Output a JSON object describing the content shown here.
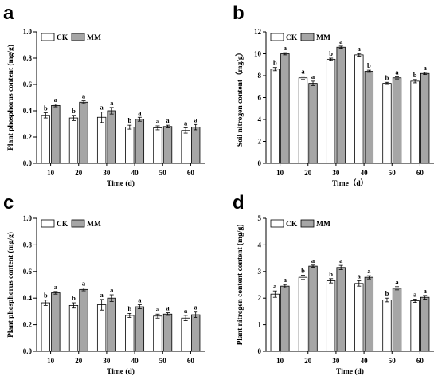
{
  "figure": {
    "panels": [
      "a",
      "b",
      "c",
      "d"
    ]
  },
  "colors": {
    "ck_fill": "#ffffff",
    "mm_fill": "#a6a6a6",
    "stroke": "#000000",
    "background": "#ffffff"
  },
  "chart_data": [
    {
      "panel": "a",
      "type": "bar",
      "categories": [
        "10",
        "20",
        "30",
        "40",
        "50",
        "60"
      ],
      "series": [
        {
          "name": "CK",
          "values": [
            0.365,
            0.345,
            0.35,
            0.275,
            0.27,
            0.25
          ],
          "errors": [
            0.02,
            0.02,
            0.04,
            0.015,
            0.015,
            0.02
          ],
          "labels": [
            "b",
            "b",
            "a",
            "b",
            "a",
            "a"
          ]
        },
        {
          "name": "MM",
          "values": [
            0.44,
            0.465,
            0.4,
            0.335,
            0.28,
            0.275
          ],
          "errors": [
            0.01,
            0.01,
            0.025,
            0.015,
            0.01,
            0.02
          ],
          "labels": [
            "a",
            "a",
            "a",
            "a",
            "a",
            "a"
          ]
        }
      ],
      "xlabel": "Time (d)",
      "ylabel": "Plant phosphorus content (mg/g)",
      "ylim": [
        0,
        1.0
      ],
      "yticks": [
        "0.0",
        "0.2",
        "0.4",
        "0.6",
        "0.8",
        "1.0"
      ],
      "legend": "top-left"
    },
    {
      "panel": "b",
      "type": "bar",
      "categories": [
        "10",
        "20",
        "30",
        "40",
        "50",
        "60"
      ],
      "series": [
        {
          "name": "CK",
          "values": [
            8.6,
            7.8,
            9.5,
            9.9,
            7.3,
            7.5
          ],
          "errors": [
            0.15,
            0.15,
            0.1,
            0.12,
            0.1,
            0.15
          ],
          "labels": [
            "b",
            "a",
            "b",
            "a",
            "b",
            "b"
          ]
        },
        {
          "name": "MM",
          "values": [
            10.0,
            7.3,
            10.6,
            8.4,
            7.8,
            8.2
          ],
          "errors": [
            0.1,
            0.2,
            0.1,
            0.1,
            0.1,
            0.1
          ],
          "labels": [
            "a",
            "a",
            "a",
            "b",
            "a",
            "a"
          ]
        }
      ],
      "xlabel": "Time（d）",
      "ylabel": "Soil nitrogen content（mg/g）",
      "ylim": [
        0,
        12
      ],
      "yticks": [
        "0",
        "2",
        "4",
        "6",
        "8",
        "10",
        "12"
      ],
      "legend": "top-left"
    },
    {
      "panel": "c",
      "type": "bar",
      "categories": [
        "10",
        "20",
        "30",
        "40",
        "50",
        "60"
      ],
      "series": [
        {
          "name": "CK",
          "values": [
            0.365,
            0.345,
            0.35,
            0.27,
            0.265,
            0.25
          ],
          "errors": [
            0.02,
            0.02,
            0.04,
            0.015,
            0.015,
            0.02
          ],
          "labels": [
            "b",
            "b",
            "a",
            "b",
            "a",
            "a"
          ]
        },
        {
          "name": "MM",
          "values": [
            0.44,
            0.465,
            0.4,
            0.335,
            0.28,
            0.275
          ],
          "errors": [
            0.01,
            0.01,
            0.025,
            0.015,
            0.01,
            0.02
          ],
          "labels": [
            "a",
            "a",
            "a",
            "a",
            "a",
            "a"
          ]
        }
      ],
      "xlabel": "Time (d)",
      "ylabel": "Plant phosphorus content (mg/g)",
      "ylim": [
        0,
        1.0
      ],
      "yticks": [
        "0.0",
        "0.2",
        "0.4",
        "0.6",
        "0.8",
        "1.0"
      ],
      "legend": "top-left"
    },
    {
      "panel": "d",
      "type": "bar",
      "categories": [
        "10",
        "20",
        "30",
        "40",
        "50",
        "60"
      ],
      "series": [
        {
          "name": "CK",
          "values": [
            2.15,
            2.78,
            2.65,
            2.55,
            1.93,
            1.9
          ],
          "errors": [
            0.12,
            0.08,
            0.08,
            0.1,
            0.07,
            0.06
          ],
          "labels": [
            "a",
            "b",
            "b",
            "a",
            "b",
            "a"
          ]
        },
        {
          "name": "MM",
          "values": [
            2.45,
            3.2,
            3.15,
            2.78,
            2.37,
            2.03
          ],
          "errors": [
            0.06,
            0.04,
            0.08,
            0.06,
            0.06,
            0.07
          ],
          "labels": [
            "a",
            "a",
            "a",
            "a",
            "a",
            "a"
          ]
        }
      ],
      "xlabel": "Time (d)",
      "ylabel": "Plant nitrogen content content (mg/g)",
      "ylim": [
        0,
        5
      ],
      "yticks": [
        "0",
        "1",
        "2",
        "3",
        "4",
        "5"
      ],
      "legend": "top-left"
    }
  ]
}
